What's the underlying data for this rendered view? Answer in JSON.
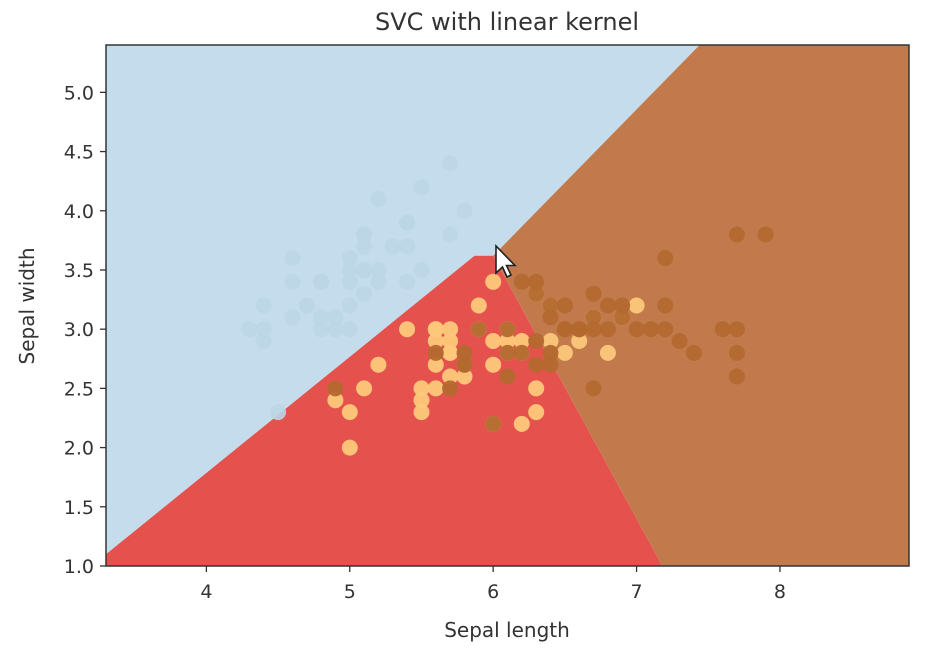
{
  "chart_data": {
    "type": "scatter",
    "title": "SVC with linear kernel",
    "xlabel": "Sepal length",
    "ylabel": "Sepal width",
    "xlim": [
      3.3,
      8.9
    ],
    "ylim": [
      1.0,
      5.4
    ],
    "xticks": [
      4,
      5,
      6,
      7,
      8
    ],
    "yticks": [
      1.0,
      1.5,
      2.0,
      2.5,
      3.0,
      3.5,
      4.0,
      4.5,
      5.0
    ],
    "grid": false,
    "colors": {
      "region_0": "#c4dceb",
      "region_1": "#e5524e",
      "region_2": "#c27a4c",
      "class_0_points": "#bcd6e6",
      "class_1_points": "#fdc87a",
      "class_2_points": "#b3692e"
    },
    "regions": [
      {
        "class": 0,
        "polygon": [
          [
            3.3,
            1.1
          ],
          [
            3.3,
            5.4
          ],
          [
            7.44,
            5.4
          ],
          [
            6.0,
            3.62
          ],
          [
            5.87,
            3.62
          ]
        ]
      },
      {
        "class": 1,
        "polygon": [
          [
            3.3,
            1.0
          ],
          [
            3.3,
            1.1
          ],
          [
            5.87,
            3.62
          ],
          [
            6.0,
            3.62
          ],
          [
            7.18,
            1.0
          ]
        ]
      },
      {
        "class": 2,
        "polygon": [
          [
            6.0,
            3.62
          ],
          [
            7.44,
            5.4
          ],
          [
            8.9,
            5.4
          ],
          [
            8.9,
            1.0
          ],
          [
            7.18,
            1.0
          ]
        ]
      }
    ],
    "series": [
      {
        "class": 0,
        "points": [
          [
            5.1,
            3.5
          ],
          [
            4.9,
            3.0
          ],
          [
            4.7,
            3.2
          ],
          [
            4.6,
            3.1
          ],
          [
            5.0,
            3.6
          ],
          [
            5.4,
            3.9
          ],
          [
            4.6,
            3.4
          ],
          [
            5.0,
            3.4
          ],
          [
            4.4,
            2.9
          ],
          [
            4.9,
            3.1
          ],
          [
            5.4,
            3.7
          ],
          [
            4.8,
            3.4
          ],
          [
            4.8,
            3.0
          ],
          [
            4.3,
            3.0
          ],
          [
            5.8,
            4.0
          ],
          [
            5.7,
            4.4
          ],
          [
            5.4,
            3.9
          ],
          [
            5.1,
            3.5
          ],
          [
            5.7,
            3.8
          ],
          [
            5.1,
            3.8
          ],
          [
            5.4,
            3.4
          ],
          [
            5.1,
            3.7
          ],
          [
            4.6,
            3.6
          ],
          [
            5.1,
            3.3
          ],
          [
            4.8,
            3.4
          ],
          [
            5.0,
            3.0
          ],
          [
            5.2,
            3.5
          ],
          [
            5.2,
            3.4
          ],
          [
            4.7,
            3.2
          ],
          [
            4.8,
            3.1
          ],
          [
            5.2,
            4.1
          ],
          [
            5.5,
            4.2
          ],
          [
            5.0,
            3.2
          ],
          [
            5.5,
            3.5
          ],
          [
            4.4,
            3.0
          ],
          [
            4.5,
            2.3
          ],
          [
            4.4,
            3.2
          ],
          [
            5.0,
            3.5
          ],
          [
            5.1,
            3.8
          ],
          [
            5.3,
            3.7
          ]
        ]
      },
      {
        "class": 1,
        "points": [
          [
            7.0,
            3.2
          ],
          [
            6.4,
            3.2
          ],
          [
            6.9,
            3.1
          ],
          [
            5.5,
            2.3
          ],
          [
            6.5,
            2.8
          ],
          [
            5.7,
            2.8
          ],
          [
            6.3,
            3.3
          ],
          [
            4.9,
            2.4
          ],
          [
            6.6,
            2.9
          ],
          [
            5.2,
            2.7
          ],
          [
            5.0,
            2.0
          ],
          [
            5.9,
            3.0
          ],
          [
            6.0,
            2.2
          ],
          [
            6.1,
            2.9
          ],
          [
            5.6,
            2.9
          ],
          [
            6.7,
            3.1
          ],
          [
            5.6,
            3.0
          ],
          [
            5.8,
            2.7
          ],
          [
            6.2,
            2.2
          ],
          [
            5.6,
            2.5
          ],
          [
            5.9,
            3.2
          ],
          [
            6.1,
            2.8
          ],
          [
            6.3,
            2.5
          ],
          [
            6.4,
            2.9
          ],
          [
            6.8,
            2.8
          ],
          [
            6.0,
            2.9
          ],
          [
            5.7,
            2.6
          ],
          [
            5.5,
            2.4
          ],
          [
            5.8,
            2.7
          ],
          [
            6.0,
            2.7
          ],
          [
            5.4,
            3.0
          ],
          [
            6.0,
            3.4
          ],
          [
            6.7,
            3.1
          ],
          [
            6.3,
            2.3
          ],
          [
            5.6,
            3.0
          ],
          [
            5.5,
            2.5
          ],
          [
            6.1,
            3.0
          ],
          [
            5.8,
            2.6
          ],
          [
            5.0,
            2.3
          ],
          [
            5.6,
            2.7
          ],
          [
            5.7,
            3.0
          ],
          [
            5.7,
            2.9
          ],
          [
            6.2,
            2.9
          ],
          [
            5.1,
            2.5
          ],
          [
            5.7,
            2.8
          ],
          [
            6.2,
            2.8
          ]
        ]
      },
      {
        "class": 2,
        "points": [
          [
            6.3,
            3.3
          ],
          [
            5.8,
            2.7
          ],
          [
            7.1,
            3.0
          ],
          [
            6.3,
            2.9
          ],
          [
            6.5,
            3.0
          ],
          [
            7.6,
            3.0
          ],
          [
            4.9,
            2.5
          ],
          [
            7.3,
            2.9
          ],
          [
            6.7,
            2.5
          ],
          [
            7.2,
            3.6
          ],
          [
            6.5,
            3.2
          ],
          [
            6.4,
            2.7
          ],
          [
            6.8,
            3.0
          ],
          [
            5.7,
            2.5
          ],
          [
            5.8,
            2.8
          ],
          [
            6.4,
            3.2
          ],
          [
            6.5,
            3.0
          ],
          [
            7.7,
            3.8
          ],
          [
            7.7,
            2.6
          ],
          [
            6.0,
            2.2
          ],
          [
            6.9,
            3.2
          ],
          [
            5.6,
            2.8
          ],
          [
            7.7,
            2.8
          ],
          [
            6.3,
            2.7
          ],
          [
            6.7,
            3.3
          ],
          [
            7.2,
            3.2
          ],
          [
            6.2,
            2.8
          ],
          [
            6.1,
            3.0
          ],
          [
            7.2,
            3.0
          ],
          [
            7.4,
            2.8
          ],
          [
            7.9,
            3.8
          ],
          [
            6.4,
            2.8
          ],
          [
            6.1,
            2.6
          ],
          [
            7.7,
            3.0
          ],
          [
            6.3,
            3.4
          ],
          [
            6.4,
            3.1
          ],
          [
            6.9,
            3.1
          ],
          [
            6.7,
            3.1
          ],
          [
            5.8,
            2.7
          ],
          [
            6.8,
            3.2
          ],
          [
            6.7,
            3.0
          ],
          [
            5.9,
            3.0
          ],
          [
            6.2,
            3.4
          ],
          [
            6.5,
            3.0
          ],
          [
            7.0,
            3.0
          ],
          [
            6.6,
            3.0
          ],
          [
            6.1,
            2.8
          ],
          [
            6.6,
            3.0
          ]
        ]
      }
    ]
  },
  "cursor_icon": "mouse-pointer-icon"
}
